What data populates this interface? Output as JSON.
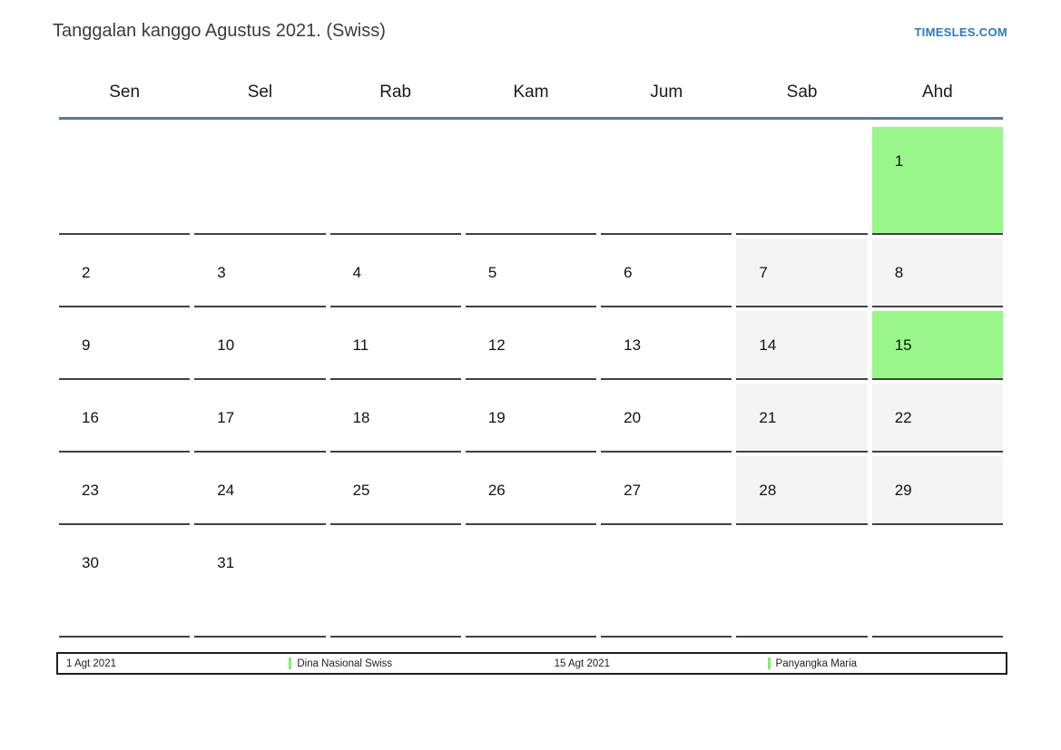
{
  "page": {
    "title": "Tanggalan kanggo Agustus 2021. (Swiss)",
    "brand": "TIMESLES.COM"
  },
  "calendar": {
    "day_headers": [
      "Sen",
      "Sel",
      "Rab",
      "Kam",
      "Jum",
      "Sab",
      "Ahd"
    ],
    "cells": [
      {
        "day": "",
        "type": "empty"
      },
      {
        "day": "",
        "type": "empty"
      },
      {
        "day": "",
        "type": "empty"
      },
      {
        "day": "",
        "type": "empty"
      },
      {
        "day": "",
        "type": "empty"
      },
      {
        "day": "",
        "type": "empty"
      },
      {
        "day": "1",
        "type": "holiday"
      },
      {
        "day": "2",
        "type": "normal"
      },
      {
        "day": "3",
        "type": "normal"
      },
      {
        "day": "4",
        "type": "normal"
      },
      {
        "day": "5",
        "type": "normal"
      },
      {
        "day": "6",
        "type": "normal"
      },
      {
        "day": "7",
        "type": "weekend"
      },
      {
        "day": "8",
        "type": "weekend"
      },
      {
        "day": "9",
        "type": "normal"
      },
      {
        "day": "10",
        "type": "normal"
      },
      {
        "day": "11",
        "type": "normal"
      },
      {
        "day": "12",
        "type": "normal"
      },
      {
        "day": "13",
        "type": "normal"
      },
      {
        "day": "14",
        "type": "weekend"
      },
      {
        "day": "15",
        "type": "holiday"
      },
      {
        "day": "16",
        "type": "normal"
      },
      {
        "day": "17",
        "type": "normal"
      },
      {
        "day": "18",
        "type": "normal"
      },
      {
        "day": "19",
        "type": "normal"
      },
      {
        "day": "20",
        "type": "normal"
      },
      {
        "day": "21",
        "type": "weekend"
      },
      {
        "day": "22",
        "type": "weekend"
      },
      {
        "day": "23",
        "type": "normal"
      },
      {
        "day": "24",
        "type": "normal"
      },
      {
        "day": "25",
        "type": "normal"
      },
      {
        "day": "26",
        "type": "normal"
      },
      {
        "day": "27",
        "type": "normal"
      },
      {
        "day": "28",
        "type": "weekend"
      },
      {
        "day": "29",
        "type": "weekend"
      },
      {
        "day": "30",
        "type": "normal"
      },
      {
        "day": "31",
        "type": "normal"
      },
      {
        "day": "",
        "type": "empty"
      },
      {
        "day": "",
        "type": "empty"
      },
      {
        "day": "",
        "type": "empty"
      },
      {
        "day": "",
        "type": "empty"
      },
      {
        "day": "",
        "type": "empty"
      }
    ]
  },
  "legend": {
    "items": [
      {
        "date": "1 Agt 2021",
        "label": "Dina Nasional Swiss"
      },
      {
        "date": "15 Agt 2021",
        "label": "Panyangka Maria"
      }
    ]
  },
  "colors": {
    "holiday_green": "#98f788",
    "weekend_gray": "#f4f4f4",
    "header_line_blue": "#5a779f",
    "brand_blue": "#2b7abe",
    "legend_marker_green": "#7df06d",
    "cell_border": "#414141"
  }
}
